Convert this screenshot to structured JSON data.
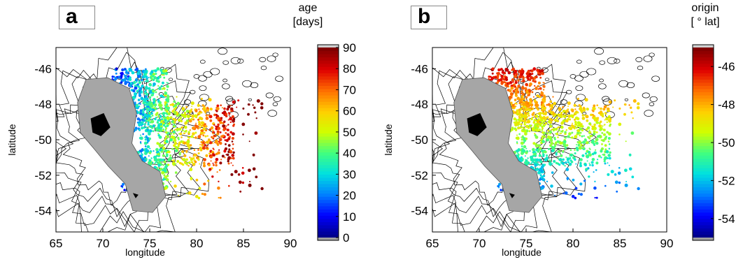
{
  "chart_data": [
    {
      "type": "heatmap",
      "panel_label": "a",
      "xlabel": "longitude",
      "ylabel": "latitude",
      "xlim": [
        65,
        90
      ],
      "ylim": [
        -55.2,
        -44.8
      ],
      "x_ticks": [
        65,
        70,
        75,
        80,
        85,
        90
      ],
      "y_ticks": [
        -46,
        -48,
        -50,
        -52,
        -54
      ],
      "colorbar": {
        "title": [
          "age",
          "[days]"
        ],
        "min": 0,
        "max": 90,
        "ticks": [
          0,
          10,
          20,
          30,
          40,
          50,
          60,
          70,
          80,
          90
        ]
      },
      "colormap": [
        "#00008b",
        "#0000ff",
        "#0080ff",
        "#00e0e0",
        "#40ff80",
        "#d0ff00",
        "#ffd000",
        "#ff7000",
        "#e00000",
        "#800000"
      ]
    },
    {
      "type": "heatmap",
      "panel_label": "b",
      "xlabel": "longitude",
      "ylabel": "latitude",
      "xlim": [
        65,
        90
      ],
      "ylim": [
        -55.2,
        -44.8
      ],
      "x_ticks": [
        65,
        70,
        75,
        80,
        85,
        90
      ],
      "y_ticks": [
        -46,
        -48,
        -50,
        -52,
        -54
      ],
      "colorbar": {
        "title": [
          "origin",
          "[ ° lat]"
        ],
        "min": -55,
        "max": -45,
        "ticks": [
          -46,
          -48,
          -50,
          -52,
          -54
        ]
      },
      "colormap": [
        "#00008b",
        "#0000ff",
        "#0080ff",
        "#00e0e0",
        "#40ff80",
        "#d0ff00",
        "#ffd000",
        "#ff7000",
        "#e00000",
        "#800000"
      ]
    }
  ]
}
